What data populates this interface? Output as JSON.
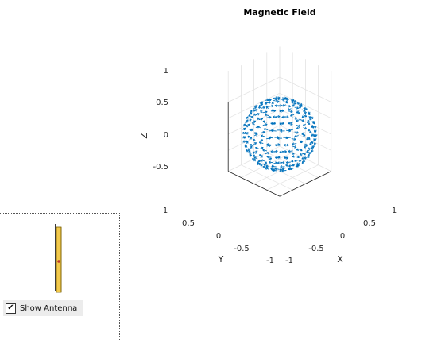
{
  "figure": {
    "title": "Magnetic Field",
    "z_axis_label": "Z",
    "x_axis_label": "X",
    "y_axis_label": "Y",
    "z_ticks": [
      "1",
      "0.5",
      "0",
      "-0.5"
    ],
    "x_ticks": [
      "-1",
      "-0.5",
      "0",
      "0.5",
      "1"
    ],
    "y_ticks": [
      "1",
      "0.5",
      "0",
      "-0.5",
      "-1"
    ],
    "arrow_color": "#0072BD",
    "box_color": "#e3e3e3"
  },
  "antenna_panel": {
    "checkbox_label": "Show Antenna",
    "checked": true,
    "check_glyph": "✔",
    "antenna_color": "#f2c94c",
    "feed_color": "#c0392b"
  }
}
